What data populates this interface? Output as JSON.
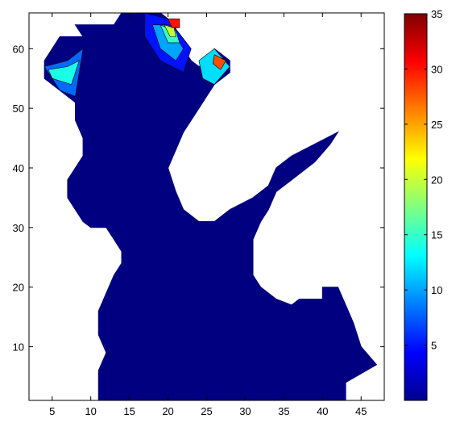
{
  "chart_data": {
    "type": "heatmap",
    "title": "",
    "xlabel": "",
    "ylabel": "",
    "xlim": [
      2,
      48
    ],
    "ylim": [
      1,
      66
    ],
    "xticks": [
      5,
      10,
      15,
      20,
      25,
      30,
      35,
      40,
      45
    ],
    "yticks": [
      10,
      20,
      30,
      40,
      50,
      60
    ],
    "colorbar": {
      "min": 0,
      "max": 35,
      "ticks": [
        5,
        10,
        15,
        20,
        25,
        30,
        35
      ],
      "colormap": "jet",
      "colors": [
        "#00008f",
        "#0000ff",
        "#0080ff",
        "#00ffff",
        "#80ff80",
        "#ffff00",
        "#ff8000",
        "#ff0000",
        "#800000"
      ]
    },
    "grid": false,
    "background_color": "#ffffff",
    "domain_color": "#000080",
    "domain_outline": [
      [
        11,
        1
      ],
      [
        43,
        1
      ],
      [
        43,
        4
      ],
      [
        47,
        7
      ],
      [
        45,
        10
      ],
      [
        44,
        14
      ],
      [
        43,
        17
      ],
      [
        42,
        20
      ],
      [
        40,
        20
      ],
      [
        40,
        18
      ],
      [
        37,
        18
      ],
      [
        36,
        17
      ],
      [
        34,
        18
      ],
      [
        32,
        20
      ],
      [
        31,
        22
      ],
      [
        31,
        28
      ],
      [
        32,
        31
      ],
      [
        33,
        33
      ],
      [
        34,
        36
      ],
      [
        36,
        38
      ],
      [
        39,
        41
      ],
      [
        41,
        44
      ],
      [
        42,
        46
      ],
      [
        36,
        42
      ],
      [
        34,
        40
      ],
      [
        33,
        37
      ],
      [
        31,
        35
      ],
      [
        28,
        33
      ],
      [
        26,
        31
      ],
      [
        24,
        31
      ],
      [
        22,
        33
      ],
      [
        21,
        36
      ],
      [
        20,
        40
      ],
      [
        21,
        43
      ],
      [
        22,
        46
      ],
      [
        24,
        50
      ],
      [
        25,
        52
      ],
      [
        26,
        54
      ],
      [
        28,
        56
      ],
      [
        28,
        58
      ],
      [
        27,
        59
      ],
      [
        26,
        60
      ],
      [
        25,
        58
      ],
      [
        24,
        57
      ],
      [
        23,
        58
      ],
      [
        22,
        60
      ],
      [
        21,
        62
      ],
      [
        21,
        64
      ],
      [
        19,
        66
      ],
      [
        14,
        66
      ],
      [
        13,
        64
      ],
      [
        8,
        64
      ],
      [
        9,
        62
      ],
      [
        6,
        62
      ],
      [
        4,
        58
      ],
      [
        4,
        55
      ],
      [
        6,
        53
      ],
      [
        8,
        51
      ],
      [
        8,
        48
      ],
      [
        9,
        45
      ],
      [
        9,
        42
      ],
      [
        8,
        40
      ],
      [
        7,
        38
      ],
      [
        7,
        35
      ],
      [
        8,
        33
      ],
      [
        9,
        31
      ],
      [
        10,
        30
      ],
      [
        12,
        30
      ],
      [
        13,
        28
      ],
      [
        14,
        26
      ],
      [
        14,
        24
      ],
      [
        13,
        22
      ],
      [
        12,
        19
      ],
      [
        11,
        16
      ],
      [
        11,
        12
      ],
      [
        12,
        9
      ],
      [
        11,
        6
      ],
      [
        11,
        3
      ]
    ],
    "contour_values": [
      {
        "level": 5,
        "points": [
          [
            17,
            66
          ],
          [
            20,
            65
          ],
          [
            23,
            60
          ],
          [
            22,
            56
          ],
          [
            19,
            58
          ],
          [
            17,
            62
          ]
        ]
      },
      {
        "level": 10,
        "points": [
          [
            18,
            64
          ],
          [
            20,
            64
          ],
          [
            22,
            60
          ],
          [
            21,
            58
          ],
          [
            19,
            60
          ]
        ]
      },
      {
        "level": 15,
        "points": [
          [
            19,
            64
          ],
          [
            21,
            63
          ],
          [
            21.5,
            61
          ],
          [
            20,
            61
          ]
        ]
      },
      {
        "level": 20,
        "points": [
          [
            19.5,
            64
          ],
          [
            20.8,
            63.5
          ],
          [
            21,
            62
          ],
          [
            20.3,
            62
          ]
        ]
      },
      {
        "level": 30,
        "points": [
          [
            20,
            65
          ],
          [
            21.5,
            65
          ],
          [
            21.5,
            63.5
          ],
          [
            20.5,
            63.5
          ]
        ]
      },
      {
        "level": 8,
        "points": [
          [
            4,
            57
          ],
          [
            7,
            58
          ],
          [
            9,
            60
          ],
          [
            8,
            52
          ],
          [
            6,
            53
          ]
        ]
      },
      {
        "level": 14,
        "points": [
          [
            4.5,
            56.5
          ],
          [
            7,
            57
          ],
          [
            8.5,
            58
          ],
          [
            7.5,
            54
          ],
          [
            5,
            55
          ]
        ]
      },
      {
        "level": 12,
        "points": [
          [
            24,
            58
          ],
          [
            26,
            60
          ],
          [
            28,
            57
          ],
          [
            26,
            54
          ],
          [
            24.5,
            55
          ]
        ]
      },
      {
        "level": 28,
        "points": [
          [
            26,
            59
          ],
          [
            27.5,
            58
          ],
          [
            26.8,
            56.5
          ],
          [
            25.8,
            57.5
          ]
        ]
      }
    ]
  }
}
